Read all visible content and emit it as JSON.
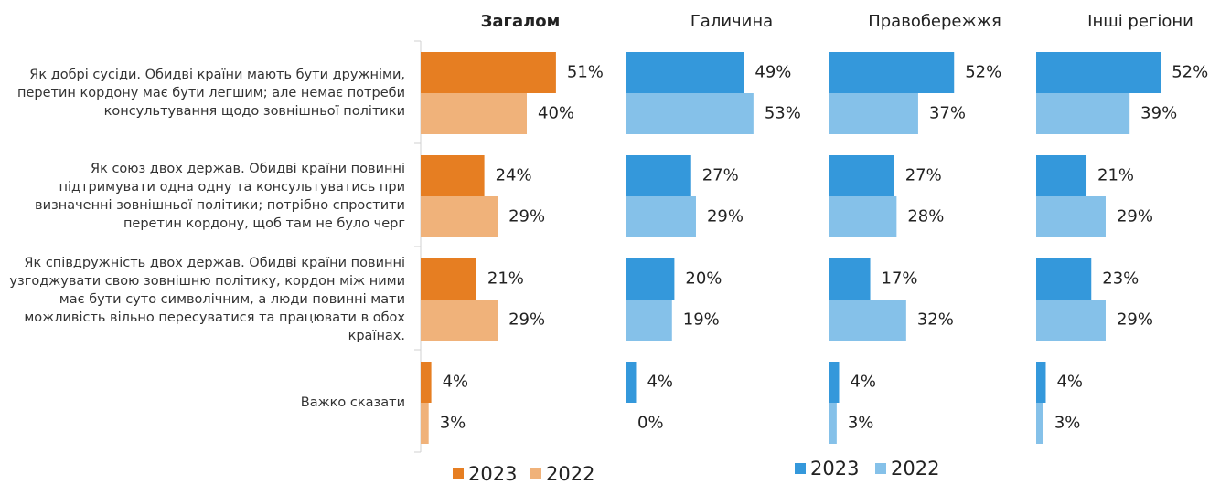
{
  "chart_data": [
    {
      "type": "bar",
      "title": "Загалом",
      "xlim": [
        0,
        100
      ],
      "categories": [
        "Як добрі сусіди. Обидві країни мають бути дружніми, перетин кордону має бути легшим; але немає потреби консультування щодо зовнішньої політики",
        "Як союз двох держав. Обидві країни повинні підтримувати одна одну та консультуватись при визначенні зовнішньої політики; потрібно спростити перетин кордону, щоб там не було черг",
        "Як співдружність двох держав. Обидві країни повинні узгоджувати свою зовнішню політику, кордон між ними має бути суто символічним, а люди повинні мати можливість вільно пересуватися та працювати в обох країнах.",
        "Важко сказати"
      ],
      "series": [
        {
          "name": "2023",
          "color": "#e67e22",
          "values": [
            51,
            24,
            21,
            4
          ],
          "value_labels": [
            "51%",
            "24%",
            "21%",
            "4%"
          ]
        },
        {
          "name": "2022",
          "color": "#f0b27a",
          "values": [
            40,
            29,
            29,
            3
          ],
          "value_labels": [
            "40%",
            "29%",
            "29%",
            "3%"
          ]
        }
      ]
    },
    {
      "type": "bar",
      "title": "Галичина",
      "xlim": [
        0,
        100
      ],
      "series": [
        {
          "name": "2023",
          "color": "#3498db",
          "values": [
            49,
            27,
            20,
            4
          ],
          "value_labels": [
            "49%",
            "27%",
            "20%",
            "4%"
          ]
        },
        {
          "name": "2022",
          "color": "#85c1e9",
          "values": [
            53,
            29,
            19,
            0
          ],
          "value_labels": [
            "53%",
            "29%",
            "19%",
            "0%"
          ]
        }
      ]
    },
    {
      "type": "bar",
      "title": "Правобережжя",
      "xlim": [
        0,
        100
      ],
      "series": [
        {
          "color": "#3498db",
          "values": [
            52,
            27,
            17,
            4
          ],
          "value_labels": [
            "52%",
            "27%",
            "17%",
            "4%"
          ]
        },
        {
          "color": "#85c1e9",
          "values": [
            37,
            28,
            32,
            3
          ],
          "value_labels": [
            "37%",
            "28%",
            "32%",
            "3%"
          ]
        }
      ]
    },
    {
      "type": "bar",
      "title": "Інші регіони",
      "xlim": [
        0,
        100
      ],
      "series": [
        {
          "color": "#3498db",
          "values": [
            52,
            21,
            23,
            4
          ],
          "value_labels": [
            "52%",
            "21%",
            "23%",
            "4%"
          ]
        },
        {
          "color": "#85c1e9",
          "values": [
            39,
            29,
            29,
            3
          ],
          "value_labels": [
            "39%",
            "29%",
            "29%",
            "3%"
          ]
        }
      ]
    }
  ]
}
